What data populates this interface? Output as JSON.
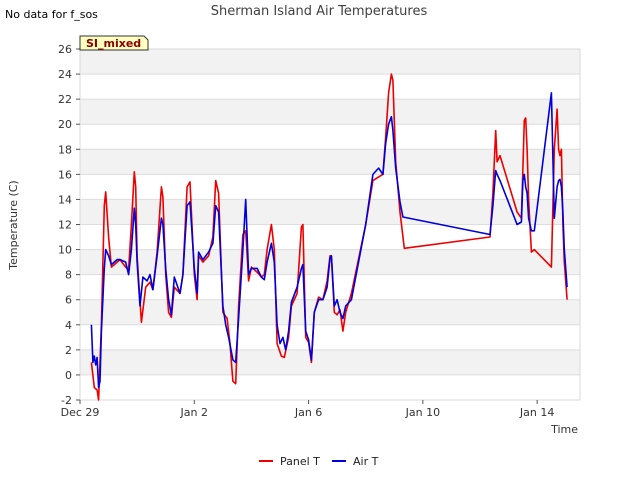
{
  "chart_data": {
    "type": "line",
    "title": "Sherman Island Air Temperatures",
    "no_data_note": "No data for f_sos",
    "tag_label": "SI_mixed",
    "xlabel": "Time",
    "ylabel": "Temperature (C)",
    "ylim": [
      -2,
      26
    ],
    "yticks": [
      -2,
      0,
      2,
      4,
      6,
      8,
      10,
      12,
      14,
      16,
      18,
      20,
      22,
      24,
      26
    ],
    "xlim_days": [
      0,
      17.5
    ],
    "xticks": [
      {
        "day": 0,
        "label": "Dec 29"
      },
      {
        "day": 4,
        "label": "Jan 2"
      },
      {
        "day": 8,
        "label": "Jan 6"
      },
      {
        "day": 12,
        "label": "Jan 10"
      },
      {
        "day": 16,
        "label": "Jan 14"
      }
    ],
    "grid": "horizontal bands",
    "legend_position": "bottom-center",
    "series": [
      {
        "name": "Panel T",
        "color": "#ee0000",
        "points": [
          [
            0.4,
            1.0
          ],
          [
            0.5,
            -1.0
          ],
          [
            0.6,
            -1.2
          ],
          [
            0.65,
            -2.0
          ],
          [
            0.75,
            4.0
          ],
          [
            0.85,
            13.5
          ],
          [
            0.9,
            14.6
          ],
          [
            1.0,
            11.0
          ],
          [
            1.1,
            8.6
          ],
          [
            1.3,
            9.0
          ],
          [
            1.4,
            9.2
          ],
          [
            1.6,
            8.6
          ],
          [
            1.7,
            8.4
          ],
          [
            1.8,
            12.0
          ],
          [
            1.9,
            16.2
          ],
          [
            1.95,
            15.0
          ],
          [
            2.0,
            9.5
          ],
          [
            2.15,
            4.2
          ],
          [
            2.3,
            7.0
          ],
          [
            2.45,
            7.4
          ],
          [
            2.55,
            6.8
          ],
          [
            2.7,
            9.8
          ],
          [
            2.85,
            15.0
          ],
          [
            2.9,
            14.2
          ],
          [
            3.0,
            8.0
          ],
          [
            3.1,
            5.0
          ],
          [
            3.2,
            4.6
          ],
          [
            3.3,
            7.0
          ],
          [
            3.5,
            6.5
          ],
          [
            3.6,
            8.0
          ],
          [
            3.75,
            15.0
          ],
          [
            3.85,
            15.4
          ],
          [
            4.0,
            8.0
          ],
          [
            4.1,
            6.0
          ],
          [
            4.15,
            9.5
          ],
          [
            4.3,
            9.0
          ],
          [
            4.5,
            9.5
          ],
          [
            4.65,
            11.0
          ],
          [
            4.75,
            15.5
          ],
          [
            4.85,
            14.5
          ],
          [
            5.0,
            5.0
          ],
          [
            5.15,
            4.5
          ],
          [
            5.25,
            2.5
          ],
          [
            5.3,
            1.0
          ],
          [
            5.35,
            -0.5
          ],
          [
            5.45,
            -0.7
          ],
          [
            5.55,
            5.5
          ],
          [
            5.7,
            11.2
          ],
          [
            5.8,
            11.5
          ],
          [
            5.9,
            7.5
          ],
          [
            6.0,
            8.6
          ],
          [
            6.2,
            8.2
          ],
          [
            6.35,
            7.8
          ],
          [
            6.45,
            8.0
          ],
          [
            6.55,
            10.0
          ],
          [
            6.7,
            12.0
          ],
          [
            6.8,
            10.0
          ],
          [
            6.9,
            2.5
          ],
          [
            7.05,
            1.5
          ],
          [
            7.15,
            1.4
          ],
          [
            7.3,
            3.0
          ],
          [
            7.4,
            5.5
          ],
          [
            7.6,
            6.5
          ],
          [
            7.75,
            11.8
          ],
          [
            7.8,
            12.0
          ],
          [
            7.9,
            3.0
          ],
          [
            8.0,
            2.6
          ],
          [
            8.1,
            1.0
          ],
          [
            8.2,
            5.0
          ],
          [
            8.35,
            6.2
          ],
          [
            8.5,
            6.0
          ],
          [
            8.65,
            7.5
          ],
          [
            8.75,
            9.5
          ],
          [
            8.8,
            9.5
          ],
          [
            8.9,
            5.0
          ],
          [
            9.0,
            4.8
          ],
          [
            9.1,
            5.2
          ],
          [
            9.2,
            3.5
          ],
          [
            9.3,
            5.0
          ],
          [
            9.5,
            6.5
          ],
          [
            10.0,
            12.0
          ],
          [
            10.25,
            15.5
          ],
          [
            10.45,
            15.8
          ],
          [
            10.6,
            16.0
          ],
          [
            10.7,
            19.0
          ],
          [
            10.8,
            22.5
          ],
          [
            10.9,
            24.0
          ],
          [
            10.95,
            23.5
          ],
          [
            11.05,
            17.0
          ],
          [
            11.2,
            13.0
          ],
          [
            11.35,
            10.1
          ],
          [
            14.35,
            11.0
          ],
          [
            14.45,
            14.5
          ],
          [
            14.55,
            19.5
          ],
          [
            14.6,
            17.0
          ],
          [
            14.7,
            17.5
          ],
          [
            15.3,
            13.0
          ],
          [
            15.45,
            12.5
          ],
          [
            15.5,
            16.5
          ],
          [
            15.55,
            20.3
          ],
          [
            15.6,
            20.5
          ],
          [
            15.65,
            18.0
          ],
          [
            15.7,
            14.0
          ],
          [
            15.8,
            9.8
          ],
          [
            15.9,
            10.0
          ],
          [
            16.5,
            8.6
          ],
          [
            16.6,
            18.0
          ],
          [
            16.7,
            21.2
          ],
          [
            16.75,
            18.0
          ],
          [
            16.8,
            17.5
          ],
          [
            16.85,
            18.0
          ],
          [
            16.9,
            12.0
          ],
          [
            16.95,
            9.0
          ],
          [
            17.05,
            6.0
          ]
        ]
      },
      {
        "name": "Air T",
        "color": "#0000dd",
        "points": [
          [
            0.4,
            4.0
          ],
          [
            0.45,
            1.0
          ],
          [
            0.5,
            1.5
          ],
          [
            0.55,
            0.8
          ],
          [
            0.6,
            1.4
          ],
          [
            0.65,
            -1.0
          ],
          [
            0.7,
            -0.5
          ],
          [
            0.75,
            3.5
          ],
          [
            0.85,
            8.5
          ],
          [
            0.9,
            10.0
          ],
          [
            1.0,
            9.5
          ],
          [
            1.1,
            8.8
          ],
          [
            1.3,
            9.2
          ],
          [
            1.4,
            9.2
          ],
          [
            1.6,
            9.0
          ],
          [
            1.7,
            8.0
          ],
          [
            1.8,
            10.0
          ],
          [
            1.9,
            13.3
          ],
          [
            1.95,
            12.0
          ],
          [
            2.0,
            9.0
          ],
          [
            2.1,
            5.5
          ],
          [
            2.2,
            7.8
          ],
          [
            2.35,
            7.5
          ],
          [
            2.45,
            8.0
          ],
          [
            2.55,
            6.8
          ],
          [
            2.7,
            9.5
          ],
          [
            2.85,
            12.5
          ],
          [
            2.9,
            12.0
          ],
          [
            3.0,
            8.5
          ],
          [
            3.1,
            6.0
          ],
          [
            3.2,
            4.8
          ],
          [
            3.3,
            7.8
          ],
          [
            3.5,
            6.5
          ],
          [
            3.6,
            8.0
          ],
          [
            3.75,
            13.5
          ],
          [
            3.85,
            13.8
          ],
          [
            4.0,
            8.5
          ],
          [
            4.1,
            6.5
          ],
          [
            4.15,
            9.8
          ],
          [
            4.3,
            9.2
          ],
          [
            4.5,
            9.8
          ],
          [
            4.65,
            10.5
          ],
          [
            4.75,
            13.5
          ],
          [
            4.85,
            13.0
          ],
          [
            5.0,
            5.5
          ],
          [
            5.1,
            4.0
          ],
          [
            5.2,
            3.0
          ],
          [
            5.35,
            1.2
          ],
          [
            5.45,
            1.0
          ],
          [
            5.55,
            4.5
          ],
          [
            5.7,
            10.0
          ],
          [
            5.8,
            14.0
          ],
          [
            5.9,
            8.0
          ],
          [
            6.0,
            8.5
          ],
          [
            6.2,
            8.5
          ],
          [
            6.35,
            7.8
          ],
          [
            6.45,
            7.6
          ],
          [
            6.55,
            9.0
          ],
          [
            6.7,
            10.5
          ],
          [
            6.8,
            9.0
          ],
          [
            6.9,
            4.0
          ],
          [
            7.0,
            2.5
          ],
          [
            7.1,
            3.0
          ],
          [
            7.2,
            2.0
          ],
          [
            7.3,
            3.5
          ],
          [
            7.4,
            5.8
          ],
          [
            7.6,
            7.0
          ],
          [
            7.75,
            8.5
          ],
          [
            7.8,
            8.8
          ],
          [
            7.9,
            3.5
          ],
          [
            8.0,
            2.8
          ],
          [
            8.1,
            1.2
          ],
          [
            8.2,
            5.0
          ],
          [
            8.35,
            6.0
          ],
          [
            8.5,
            6.0
          ],
          [
            8.65,
            7.0
          ],
          [
            8.75,
            9.3
          ],
          [
            8.8,
            9.5
          ],
          [
            8.9,
            5.5
          ],
          [
            9.0,
            6.0
          ],
          [
            9.1,
            5.0
          ],
          [
            9.2,
            4.5
          ],
          [
            9.3,
            5.5
          ],
          [
            9.5,
            6.0
          ],
          [
            10.0,
            12.0
          ],
          [
            10.25,
            16.0
          ],
          [
            10.45,
            16.5
          ],
          [
            10.6,
            16.0
          ],
          [
            10.7,
            18.5
          ],
          [
            10.8,
            20.0
          ],
          [
            10.9,
            20.6
          ],
          [
            10.95,
            19.5
          ],
          [
            11.05,
            16.5
          ],
          [
            11.2,
            13.8
          ],
          [
            11.3,
            12.6
          ],
          [
            14.35,
            11.2
          ],
          [
            14.45,
            13.5
          ],
          [
            14.55,
            16.3
          ],
          [
            14.6,
            16.0
          ],
          [
            14.7,
            15.5
          ],
          [
            15.3,
            12.0
          ],
          [
            15.45,
            12.2
          ],
          [
            15.5,
            15.5
          ],
          [
            15.55,
            16.0
          ],
          [
            15.6,
            15.0
          ],
          [
            15.65,
            14.5
          ],
          [
            15.7,
            12.5
          ],
          [
            15.8,
            11.5
          ],
          [
            15.9,
            11.5
          ],
          [
            16.5,
            22.5
          ],
          [
            16.6,
            12.5
          ],
          [
            16.7,
            15.0
          ],
          [
            16.75,
            15.5
          ],
          [
            16.8,
            15.6
          ],
          [
            16.85,
            15.0
          ],
          [
            16.9,
            13.0
          ],
          [
            16.95,
            10.0
          ],
          [
            17.05,
            7.0
          ]
        ]
      }
    ]
  }
}
